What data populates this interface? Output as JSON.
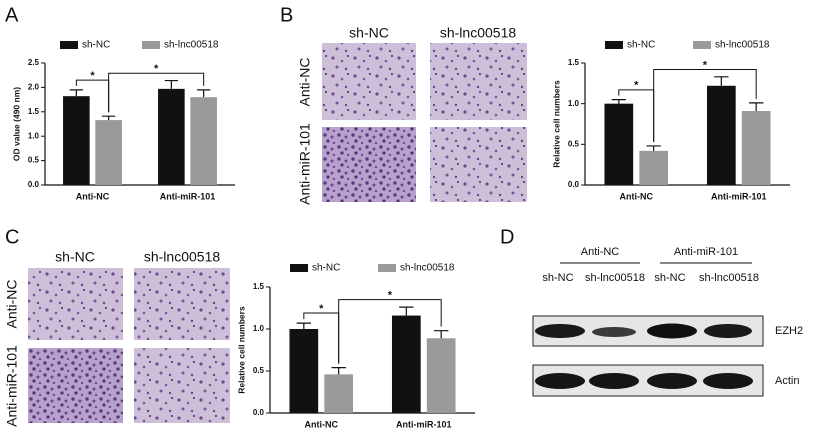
{
  "panel_labels": [
    "A",
    "B",
    "C",
    "D"
  ],
  "chart_data": [
    {
      "type": "bar",
      "ylabel": "OD value (490 nm)",
      "categories": [
        "Anti-NC",
        "Anti-miR-101"
      ],
      "series": [
        {
          "name": "sh-NC",
          "color": "#111111",
          "values": [
            1.82,
            1.97
          ],
          "errors": [
            0.13,
            0.17
          ]
        },
        {
          "name": "sh-lnc00518",
          "color": "#9a9a9a",
          "values": [
            1.33,
            1.8
          ],
          "errors": [
            0.08,
            0.15
          ]
        }
      ],
      "ylim": [
        0,
        2.5
      ],
      "yticks": [
        {
          "value": 0,
          "label": "0.0"
        },
        0.5,
        {
          "value": 1,
          "label": "1.0"
        },
        1.5,
        {
          "value": 2,
          "label": "2.0"
        },
        2.5
      ],
      "annotations": [
        "*",
        "*"
      ]
    },
    {
      "type": "bar",
      "ylabel": "Relative cell numbers",
      "categories": [
        "Anti-NC",
        "Anti-miR-101"
      ],
      "series": [
        {
          "name": "sh-NC",
          "color": "#111111",
          "values": [
            1.0,
            1.22
          ],
          "errors": [
            0.05,
            0.11
          ]
        },
        {
          "name": "sh-lnc00518",
          "color": "#9a9a9a",
          "values": [
            0.42,
            0.91
          ],
          "errors": [
            0.06,
            0.1
          ]
        }
      ],
      "ylim": [
        0,
        1.5
      ],
      "yticks": [
        {
          "value": 0,
          "label": "0.0"
        },
        0.5,
        {
          "value": 1,
          "label": "1.0"
        },
        1.5
      ],
      "annotations": [
        "*",
        "*"
      ]
    },
    {
      "type": "bar",
      "ylabel": "Relative cell numbers",
      "categories": [
        "Anti-NC",
        "Anti-miR-101"
      ],
      "series": [
        {
          "name": "sh-NC",
          "color": "#111111",
          "values": [
            1.0,
            1.16
          ],
          "errors": [
            0.07,
            0.1
          ]
        },
        {
          "name": "sh-lnc00518",
          "color": "#9a9a9a",
          "values": [
            0.46,
            0.89
          ],
          "errors": [
            0.08,
            0.09
          ]
        }
      ],
      "ylim": [
        0,
        1.5
      ],
      "yticks": [
        {
          "value": 0,
          "label": "0.0"
        },
        0.5,
        {
          "value": 1,
          "label": "1.0"
        },
        1.5
      ],
      "annotations": [
        "*",
        "*"
      ]
    }
  ],
  "micrographs": [
    {
      "columns": [
        "sh-NC",
        "sh-lnc00518"
      ],
      "rows": [
        "Anti-NC",
        "Anti-miR-101"
      ]
    },
    {
      "columns": [
        "sh-NC",
        "sh-lnc00518"
      ],
      "rows": [
        "Anti-NC",
        "Anti-miR-101"
      ]
    }
  ],
  "western_blot": {
    "groups": [
      "Anti-NC",
      "Anti-miR-101"
    ],
    "lanes": [
      "sh-NC",
      "sh-lnc00518",
      "sh-NC",
      "sh-lnc00518"
    ],
    "proteins": [
      "EZH2",
      "Actin"
    ]
  }
}
